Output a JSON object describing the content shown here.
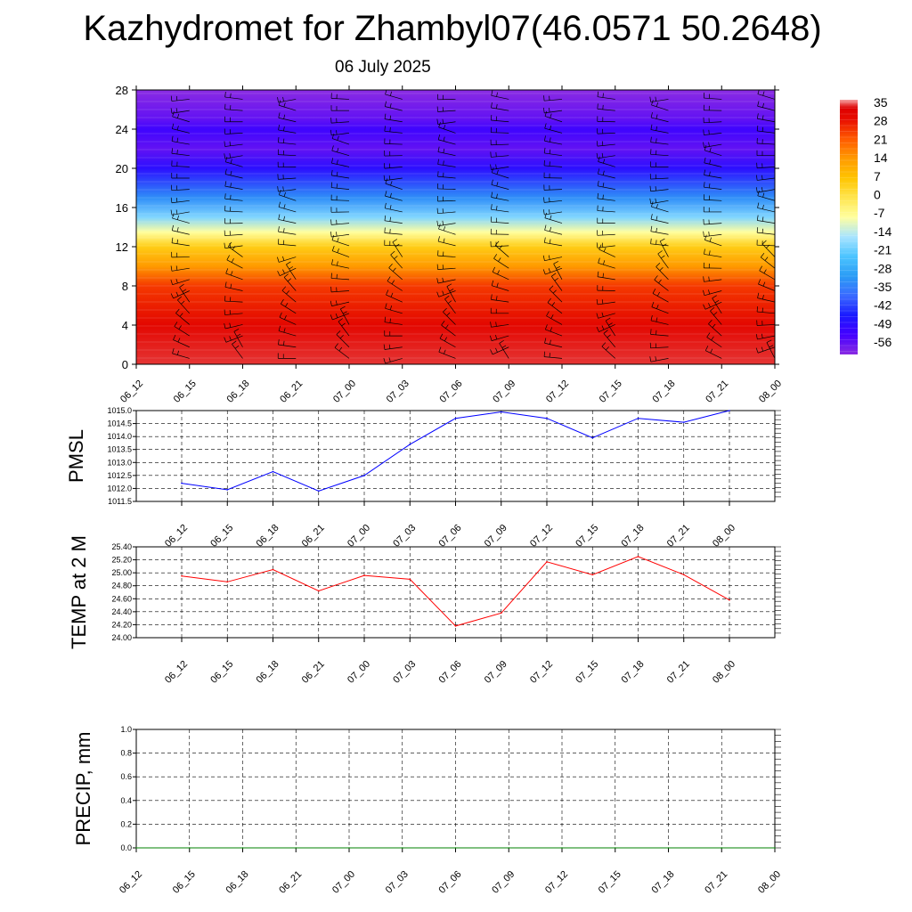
{
  "header": {
    "title": "Kazhydromet for Zhambyl07(46.0571 50.2648)",
    "subtitle": "06 July 2025"
  },
  "colorbar": {
    "labels": [
      "35",
      "28",
      "21",
      "14",
      "7",
      "0",
      "-7",
      "-14",
      "-21",
      "-28",
      "-35",
      "-42",
      "-49",
      "-56"
    ]
  },
  "chart_data": [
    {
      "type": "heatmap",
      "name": "cross-section",
      "x": [
        "06_12",
        "06_15",
        "06_18",
        "06_21",
        "07_00",
        "07_03",
        "07_06",
        "07_09",
        "07_12",
        "07_15",
        "07_18",
        "07_21",
        "08_00"
      ],
      "y_ticks": [
        0,
        4,
        8,
        12,
        16,
        20,
        24,
        28
      ],
      "ylim": [
        0,
        28
      ],
      "colorbar_range": [
        -56,
        35
      ],
      "temperature_profile": [
        {
          "y": 0,
          "value": 33
        },
        {
          "y": 4,
          "value": 30
        },
        {
          "y": 8,
          "value": 24
        },
        {
          "y": 10,
          "value": 14
        },
        {
          "y": 12,
          "value": 5
        },
        {
          "y": 13.5,
          "value": -7
        },
        {
          "y": 15,
          "value": -17
        },
        {
          "y": 17,
          "value": -30
        },
        {
          "y": 20,
          "value": -45
        },
        {
          "y": 22,
          "value": -52
        },
        {
          "y": 24,
          "value": -48
        },
        {
          "y": 25,
          "value": -52
        },
        {
          "y": 28,
          "value": -56
        }
      ],
      "wind_barbs": true
    },
    {
      "type": "line",
      "ylabel": "PMSL",
      "categories": [
        "06_12",
        "06_15",
        "06_18",
        "06_21",
        "07_00",
        "07_03",
        "07_06",
        "07_09",
        "07_12",
        "07_15",
        "07_18",
        "07_21",
        "08_00"
      ],
      "values": [
        1012.2,
        1011.95,
        1012.65,
        1011.9,
        1012.5,
        1013.7,
        1014.7,
        1014.95,
        1014.7,
        1013.95,
        1014.7,
        1014.55,
        1015.0
      ],
      "ylim": [
        1011.5,
        1015.0
      ],
      "y_ticks": [
        "1011.5",
        "1012.0",
        "1012.5",
        "1013.0",
        "1013.5",
        "1014.0",
        "1014.5",
        "1015.0"
      ],
      "color": "#0000ff",
      "grid": true
    },
    {
      "type": "line",
      "ylabel": "TEMP at 2 M",
      "categories": [
        "06_12",
        "06_15",
        "06_18",
        "06_21",
        "07_00",
        "07_03",
        "07_06",
        "07_09",
        "07_12",
        "07_15",
        "07_18",
        "07_21",
        "08_00"
      ],
      "values": [
        24.95,
        24.86,
        25.05,
        24.72,
        24.96,
        24.9,
        24.18,
        24.38,
        25.17,
        24.97,
        25.25,
        24.97,
        24.58
      ],
      "ylim": [
        24.0,
        25.4
      ],
      "y_ticks": [
        "24.00",
        "24.20",
        "24.40",
        "24.60",
        "24.80",
        "25.00",
        "25.20",
        "25.40"
      ],
      "color": "#ff0000",
      "grid": true
    },
    {
      "type": "line",
      "ylabel": "PRECIP, mm",
      "categories": [
        "06_12",
        "06_15",
        "06_18",
        "06_21",
        "07_00",
        "07_03",
        "07_06",
        "07_09",
        "07_12",
        "07_15",
        "07_18",
        "07_21",
        "08_00"
      ],
      "values": [
        0,
        0,
        0,
        0,
        0,
        0,
        0,
        0,
        0,
        0,
        0,
        0,
        0
      ],
      "ylim": [
        0.0,
        1.0
      ],
      "y_ticks": [
        "0.0",
        "0.2",
        "0.4",
        "0.6",
        "0.8",
        "1.0"
      ],
      "color": "#008000",
      "grid": true
    }
  ]
}
